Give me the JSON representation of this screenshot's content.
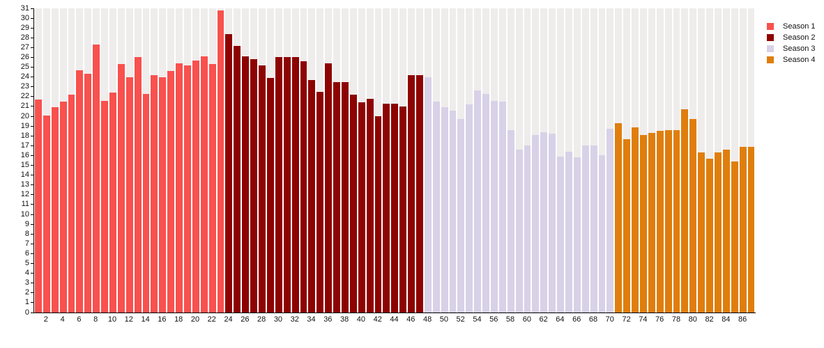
{
  "chart_data": {
    "type": "bar",
    "title": "",
    "xlabel": "",
    "ylabel": "",
    "ylim": [
      0,
      31
    ],
    "ytick_step": 1,
    "xtick_step": 2,
    "grid": "vertical-stripes",
    "backdrop_color": "#efecec",
    "legend_position": "top-right",
    "series": [
      {
        "name": "Season 1",
        "color": "#f8514e",
        "start_episode": 1,
        "values": [
          21.7,
          20.1,
          20.9,
          21.5,
          22.2,
          24.7,
          24.3,
          27.3,
          21.6,
          22.4,
          25.3,
          24.0,
          26.0,
          22.3,
          24.2,
          24.0,
          24.6,
          25.4,
          25.2,
          25.7,
          26.1,
          25.3,
          30.8
        ]
      },
      {
        "name": "Season 2",
        "color": "#8d0302",
        "start_episode": 24,
        "values": [
          28.4,
          27.2,
          26.1,
          25.8,
          25.2,
          23.9,
          26.0,
          26.0,
          26.0,
          25.6,
          23.7,
          22.5,
          25.4,
          23.5,
          23.5,
          22.2,
          21.4,
          21.8,
          20.0,
          21.3,
          21.3,
          21.0,
          24.2,
          24.2
        ]
      },
      {
        "name": "Season 3",
        "color": "#d8d1e7",
        "start_episode": 48,
        "values": [
          24.0,
          21.5,
          20.9,
          20.6,
          19.7,
          21.2,
          22.6,
          22.3,
          21.6,
          21.5,
          18.6,
          16.6,
          17.0,
          18.1,
          18.4,
          18.2,
          15.9,
          16.4,
          15.8,
          17.0,
          17.0,
          16.0,
          18.7
        ]
      },
      {
        "name": "Season 4",
        "color": "#df7e0d",
        "start_episode": 71,
        "values": [
          19.3,
          17.7,
          18.9,
          18.1,
          18.3,
          18.5,
          18.6,
          18.6,
          20.7,
          19.7,
          16.3,
          15.7,
          16.3,
          16.6,
          15.4,
          16.9,
          16.9
        ]
      }
    ]
  },
  "legend": {
    "entries": [
      {
        "label": "Season 1",
        "color": "#f8514e"
      },
      {
        "label": "Season 2",
        "color": "#8d0302"
      },
      {
        "label": "Season 3",
        "color": "#d8d1e7"
      },
      {
        "label": "Season 4",
        "color": "#df7e0d"
      }
    ]
  }
}
